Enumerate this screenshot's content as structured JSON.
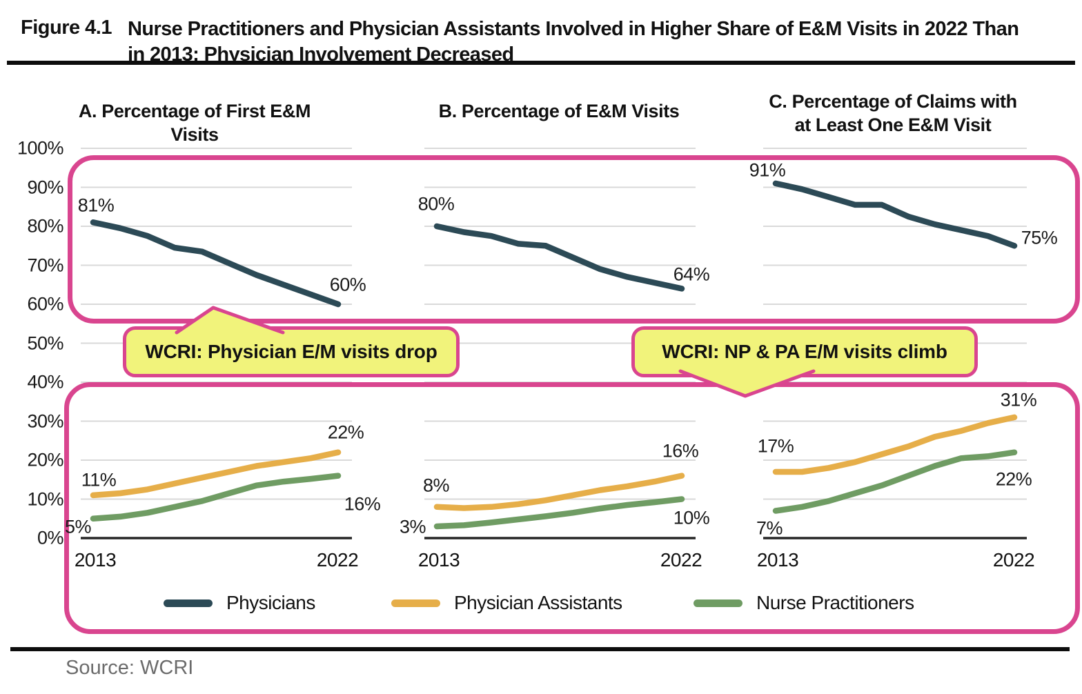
{
  "figure": {
    "label": "Figure 4.1",
    "title_lines": [
      "Nurse Practitioners and Physician Assistants Involved in Higher Share of E&M Visits in 2022 Than",
      "in 2013; Physician Involvement Decreased"
    ]
  },
  "source": "Source: WCRI",
  "colors": {
    "physicians": "#2c4a56",
    "physician_assistants": "#e6ae49",
    "nurse_practitioners": "#6f9c63",
    "highlight_border": "#d9458f",
    "callout_bg": "#f1f37b",
    "gridline": "#d9d9d9",
    "axis": "#262626"
  },
  "y_axis": {
    "tick_labels": [
      "100%",
      "90%",
      "80%",
      "70%",
      "60%",
      "50%",
      "40%",
      "30%",
      "20%",
      "10%",
      "0%"
    ],
    "tick_values": [
      100,
      90,
      80,
      70,
      60,
      50,
      40,
      30,
      20,
      10,
      0
    ]
  },
  "x_axis": {
    "start_label": "2013",
    "end_label": "2022"
  },
  "callouts": [
    {
      "text": "WCRI: Physician E/M visits drop"
    },
    {
      "text": "WCRI: NP & PA E/M visits climb"
    }
  ],
  "legend": [
    {
      "key": "physicians",
      "label": "Physicians"
    },
    {
      "key": "physician_assistants",
      "label": "Physician Assistants"
    },
    {
      "key": "nurse_practitioners",
      "label": "Nurse Practitioners"
    }
  ],
  "chart_data": [
    {
      "id": "A",
      "type": "line",
      "title": "A. Percentage of First E&M Visits",
      "title_lines": [
        "A. Percentage of First E&M Visits"
      ],
      "x": [
        2013,
        2014,
        2015,
        2016,
        2017,
        2018,
        2019,
        2020,
        2021,
        2022
      ],
      "ylim": [
        0,
        100
      ],
      "grid": true,
      "series": [
        {
          "name": "Physicians",
          "color_key": "physicians",
          "values": [
            81,
            79.5,
            77.5,
            74.5,
            73.5,
            70.5,
            67.5,
            65,
            62.5,
            60
          ],
          "start_label": "81%",
          "end_label": "60%"
        },
        {
          "name": "Physician Assistants",
          "color_key": "physician_assistants",
          "values": [
            11,
            11.5,
            12.5,
            14,
            15.5,
            17,
            18.5,
            19.5,
            20.5,
            22
          ],
          "start_label": "11%",
          "end_label": "22%"
        },
        {
          "name": "Nurse Practitioners",
          "color_key": "nurse_practitioners",
          "values": [
            5,
            5.5,
            6.5,
            8,
            9.5,
            11.5,
            13.5,
            14.5,
            15.2,
            16
          ],
          "start_label": "5%",
          "end_label": "16%"
        }
      ]
    },
    {
      "id": "B",
      "type": "line",
      "title": "B. Percentage of E&M Visits",
      "title_lines": [
        "B. Percentage of E&M Visits"
      ],
      "x": [
        2013,
        2014,
        2015,
        2016,
        2017,
        2018,
        2019,
        2020,
        2021,
        2022
      ],
      "ylim": [
        0,
        100
      ],
      "grid": true,
      "series": [
        {
          "name": "Physicians",
          "color_key": "physicians",
          "values": [
            80,
            78.5,
            77.5,
            75.5,
            75,
            72,
            69,
            67,
            65.5,
            64
          ],
          "start_label": "80%",
          "end_label": "64%"
        },
        {
          "name": "Physician Assistants",
          "color_key": "physician_assistants",
          "values": [
            8,
            7.7,
            8,
            8.7,
            9.7,
            11,
            12.3,
            13.3,
            14.5,
            16
          ],
          "start_label": "8%",
          "end_label": "16%"
        },
        {
          "name": "Nurse Practitioners",
          "color_key": "nurse_practitioners",
          "values": [
            3,
            3.3,
            4,
            4.8,
            5.6,
            6.5,
            7.6,
            8.5,
            9.2,
            10
          ],
          "start_label": "3%",
          "end_label": "10%"
        }
      ]
    },
    {
      "id": "C",
      "type": "line",
      "title": "C. Percentage of Claims with at Least One E&M Visit",
      "title_lines": [
        "C. Percentage of Claims with",
        "at Least One E&M Visit"
      ],
      "x": [
        2013,
        2014,
        2015,
        2016,
        2017,
        2018,
        2019,
        2020,
        2021,
        2022
      ],
      "ylim": [
        0,
        100
      ],
      "grid": true,
      "series": [
        {
          "name": "Physicians",
          "color_key": "physicians",
          "values": [
            91,
            89.5,
            87.5,
            85.5,
            85.5,
            82.5,
            80.5,
            79,
            77.5,
            75
          ],
          "start_label": "91%",
          "end_label": "75%"
        },
        {
          "name": "Physician Assistants",
          "color_key": "physician_assistants",
          "values": [
            17,
            17,
            18,
            19.5,
            21.5,
            23.5,
            26,
            27.5,
            29.5,
            31
          ],
          "start_label": "17%",
          "end_label": "31%"
        },
        {
          "name": "Nurse Practitioners",
          "color_key": "nurse_practitioners",
          "values": [
            7,
            8,
            9.5,
            11.5,
            13.5,
            16,
            18.5,
            20.5,
            21,
            22
          ],
          "start_label": "7%",
          "end_label": "22%"
        }
      ]
    }
  ]
}
